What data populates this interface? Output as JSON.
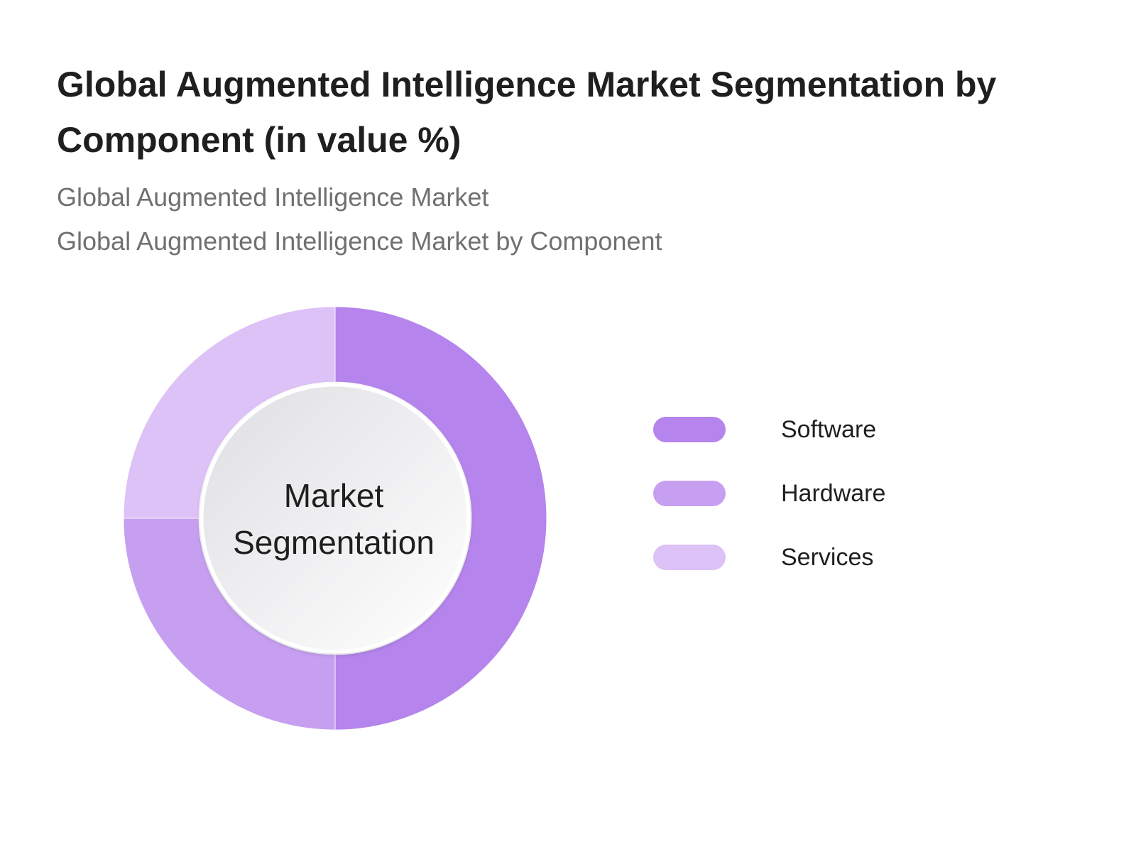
{
  "title": "Global Augmented Intelligence Market Segmentation by Component (in value %)",
  "subtitles": [
    "Global Augmented Intelligence Market",
    "Global Augmented Intelligence Market by Component"
  ],
  "center_label": {
    "line1": "Market",
    "line2": "Segmentation"
  },
  "legend": [
    {
      "label": "Software",
      "color": "#b584ec"
    },
    {
      "label": "Hardware",
      "color": "#c79ff0"
    },
    {
      "label": "Services",
      "color": "#dcc2f6"
    }
  ],
  "chart_data": {
    "type": "pie",
    "title": "Global Augmented Intelligence Market Segmentation by Component (in value %)",
    "categories": [
      "Software",
      "Hardware",
      "Services"
    ],
    "values": [
      50,
      25,
      25
    ],
    "colors": [
      "#b584ec",
      "#c79ff0",
      "#dcc2f6"
    ],
    "donut": true,
    "legend_position": "right"
  }
}
